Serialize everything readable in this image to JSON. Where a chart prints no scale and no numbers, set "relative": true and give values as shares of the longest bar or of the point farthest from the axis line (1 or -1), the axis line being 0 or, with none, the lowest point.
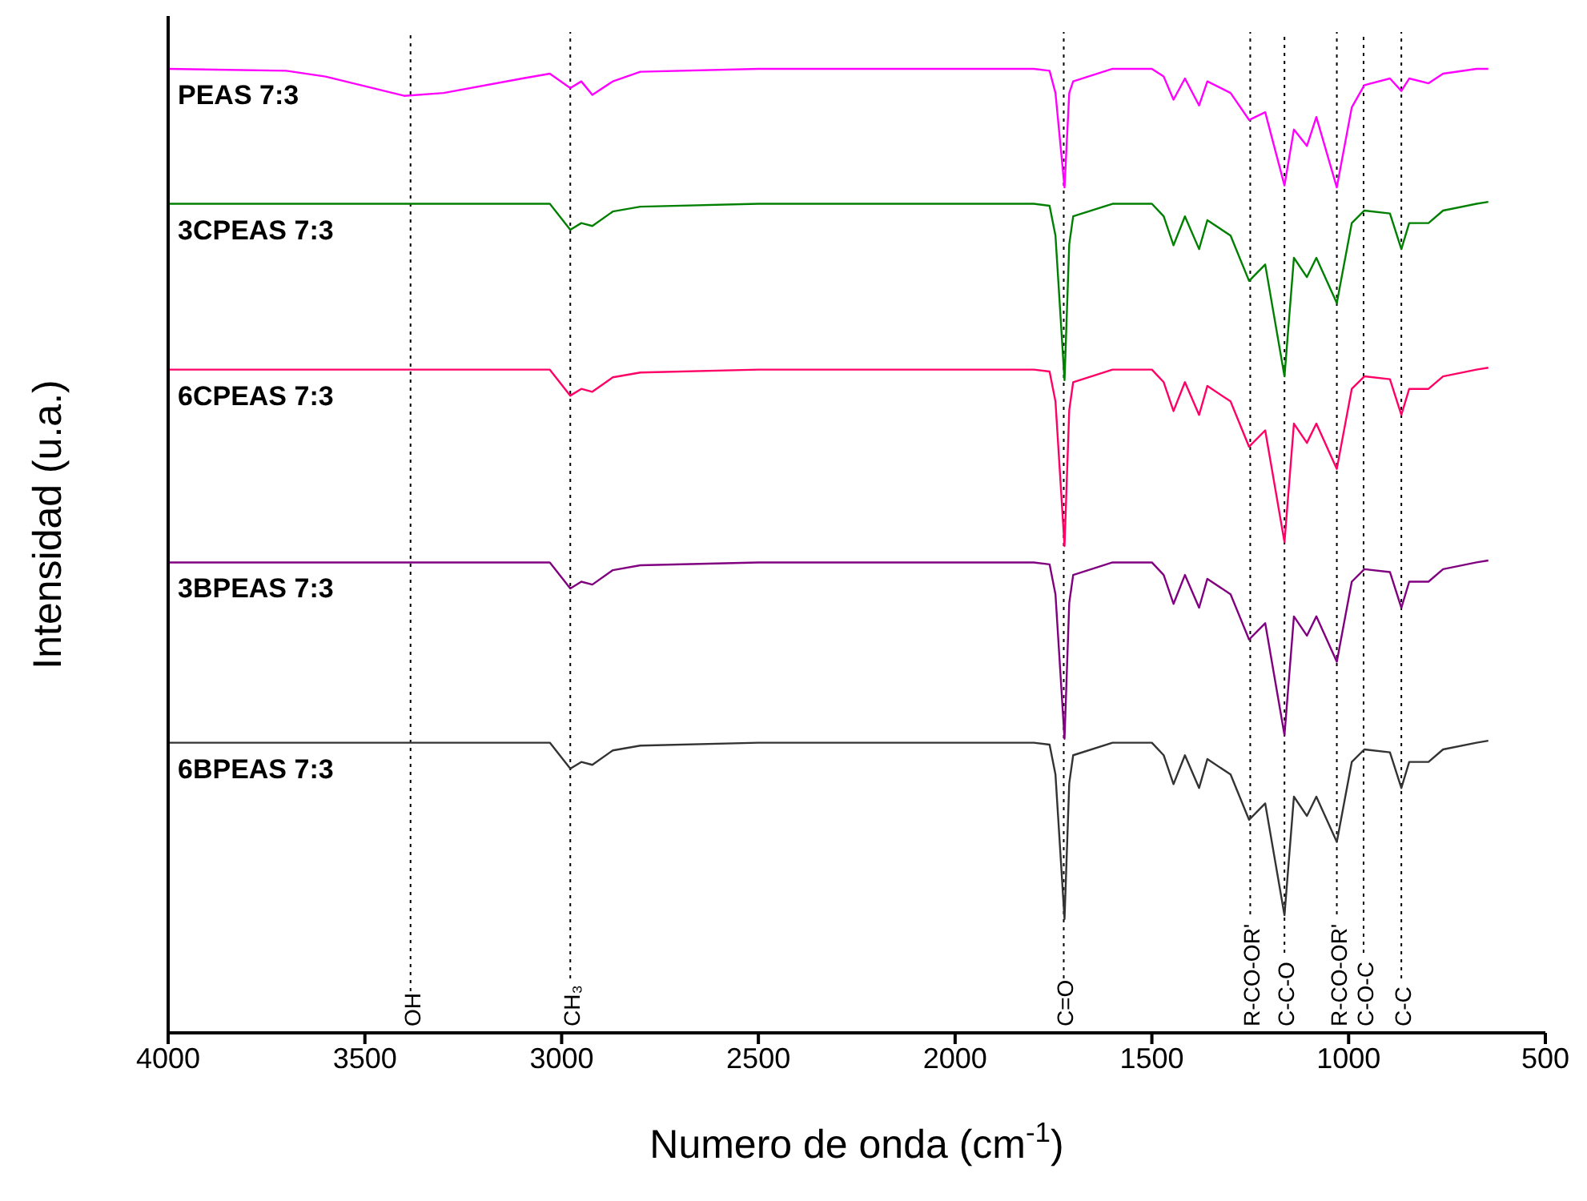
{
  "chart_data": {
    "type": "line",
    "relative": true,
    "xlabel": "Numero de onda (cm$^{-1}$)",
    "ylabel": "Intensidad (u.a.)",
    "xlim": [
      4000,
      500
    ],
    "xticks": [
      4000,
      3500,
      3000,
      2500,
      2000,
      1500,
      1000,
      500
    ],
    "x": [
      4000,
      3700,
      3600,
      3400,
      3300,
      3100,
      3030,
      2978,
      2950,
      2922,
      2870,
      2800,
      2500,
      2000,
      1800,
      1760,
      1745,
      1722,
      1710,
      1700,
      1600,
      1500,
      1470,
      1445,
      1416,
      1380,
      1359,
      1300,
      1253,
      1212,
      1163,
      1139,
      1106,
      1082,
      1030,
      992,
      960,
      895,
      866,
      846,
      797,
      760,
      675,
      645
    ],
    "marker": "none",
    "line_style": "solid",
    "series": [
      {
        "name": "PEAS 7:3",
        "color": "#ff00ff",
        "values": [
          1.0,
          0.998,
          0.992,
          0.972,
          0.975,
          0.99,
          0.995,
          0.98,
          0.987,
          0.973,
          0.987,
          0.997,
          1.0,
          1.0,
          1.0,
          0.998,
          0.975,
          0.877,
          0.975,
          0.987,
          1.0,
          1.0,
          0.992,
          0.968,
          0.99,
          0.962,
          0.987,
          0.975,
          0.947,
          0.955,
          0.879,
          0.937,
          0.92,
          0.95,
          0.877,
          0.96,
          0.983,
          0.99,
          0.977,
          0.99,
          0.985,
          0.995,
          1.0,
          1.0
        ]
      },
      {
        "name": "3CPEAS 7:3",
        "color": "#008000",
        "values": [
          0.86,
          0.86,
          0.86,
          0.86,
          0.86,
          0.86,
          0.86,
          0.833,
          0.84,
          0.837,
          0.852,
          0.857,
          0.86,
          0.86,
          0.86,
          0.858,
          0.827,
          0.677,
          0.818,
          0.847,
          0.86,
          0.86,
          0.847,
          0.817,
          0.847,
          0.813,
          0.843,
          0.827,
          0.78,
          0.797,
          0.681,
          0.804,
          0.784,
          0.804,
          0.757,
          0.84,
          0.853,
          0.85,
          0.813,
          0.84,
          0.84,
          0.853,
          0.86,
          0.862
        ]
      },
      {
        "name": "6CPEAS 7:3",
        "color": "#ff0066",
        "values": [
          0.688,
          0.688,
          0.688,
          0.688,
          0.688,
          0.688,
          0.688,
          0.661,
          0.668,
          0.665,
          0.68,
          0.685,
          0.688,
          0.688,
          0.688,
          0.686,
          0.655,
          0.505,
          0.646,
          0.675,
          0.688,
          0.688,
          0.675,
          0.645,
          0.675,
          0.641,
          0.671,
          0.655,
          0.608,
          0.625,
          0.509,
          0.632,
          0.612,
          0.632,
          0.585,
          0.668,
          0.681,
          0.678,
          0.641,
          0.668,
          0.668,
          0.681,
          0.688,
          0.69
        ]
      },
      {
        "name": "3BPEAS 7:3",
        "color": "#800080",
        "values": [
          0.488,
          0.488,
          0.488,
          0.488,
          0.488,
          0.488,
          0.488,
          0.461,
          0.468,
          0.465,
          0.48,
          0.485,
          0.488,
          0.488,
          0.488,
          0.486,
          0.455,
          0.305,
          0.446,
          0.475,
          0.488,
          0.488,
          0.475,
          0.445,
          0.475,
          0.441,
          0.471,
          0.455,
          0.408,
          0.425,
          0.309,
          0.432,
          0.412,
          0.432,
          0.385,
          0.468,
          0.481,
          0.478,
          0.441,
          0.468,
          0.468,
          0.481,
          0.488,
          0.49
        ]
      },
      {
        "name": "6BPEAS 7:3",
        "color": "#333333",
        "values": [
          0.301,
          0.301,
          0.301,
          0.301,
          0.301,
          0.301,
          0.301,
          0.274,
          0.281,
          0.278,
          0.293,
          0.298,
          0.301,
          0.301,
          0.301,
          0.299,
          0.268,
          0.118,
          0.259,
          0.288,
          0.301,
          0.301,
          0.288,
          0.258,
          0.288,
          0.254,
          0.284,
          0.268,
          0.221,
          0.238,
          0.122,
          0.245,
          0.225,
          0.245,
          0.198,
          0.281,
          0.294,
          0.291,
          0.254,
          0.281,
          0.281,
          0.294,
          0.301,
          0.303
        ]
      }
    ],
    "ref_lines": [
      {
        "axis": "x",
        "value": 3384,
        "label": "OH",
        "color": "#000000",
        "line_style": "dotted"
      },
      {
        "axis": "x",
        "value": 2978,
        "label": "CH₃",
        "color": "#000000",
        "line_style": "dotted"
      },
      {
        "axis": "x",
        "value": 1724,
        "label": "C=O",
        "color": "#000000",
        "line_style": "dotted"
      },
      {
        "axis": "x",
        "value": 1250,
        "label": "R-CO-OR'",
        "color": "#000000",
        "line_style": "dotted"
      },
      {
        "axis": "x",
        "value": 1163,
        "label": "C-C-O",
        "color": "#000000",
        "line_style": "dotted"
      },
      {
        "axis": "x",
        "value": 1030,
        "label": "R-CO-OR'",
        "color": "#000000",
        "line_style": "dotted"
      },
      {
        "axis": "x",
        "value": 962,
        "label": "C-O-C",
        "color": "#000000",
        "line_style": "dotted"
      },
      {
        "axis": "x",
        "value": 866,
        "label": "C-C",
        "color": "#000000",
        "line_style": "dotted"
      }
    ]
  }
}
